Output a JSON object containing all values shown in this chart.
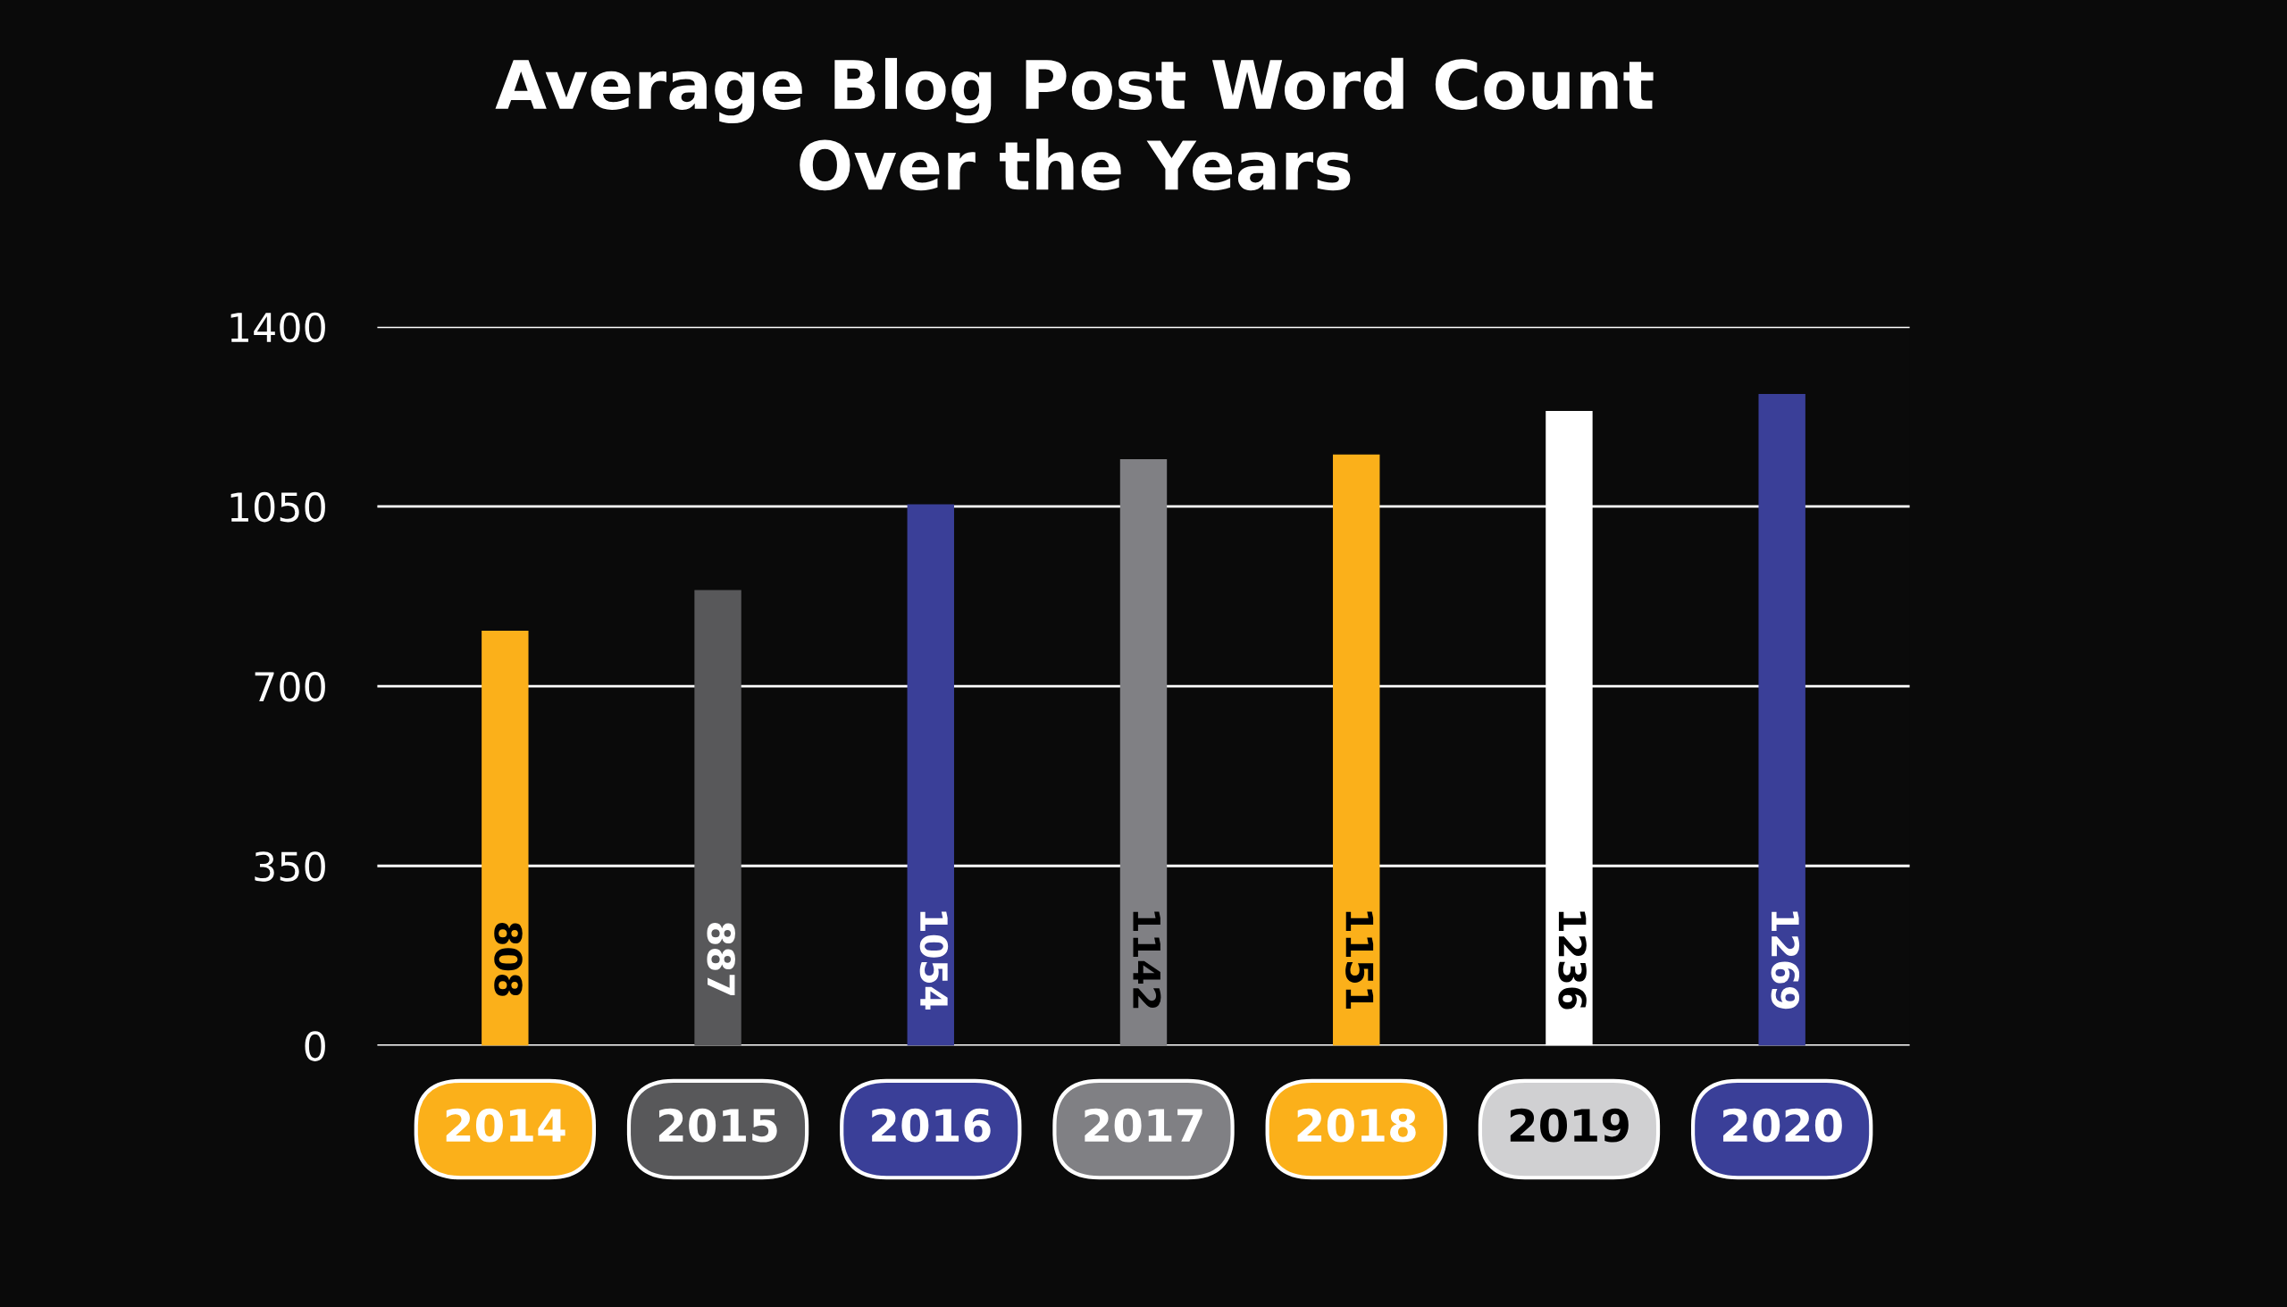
{
  "chart_data": {
    "type": "bar",
    "title": "Average Blog Post Word Count\nOver the Years",
    "categories": [
      "2014",
      "2015",
      "2016",
      "2017",
      "2018",
      "2019",
      "2020"
    ],
    "values": [
      808,
      887,
      1054,
      1142,
      1151,
      1236,
      1269
    ],
    "colors": [
      "#fbb01a",
      "#58585a",
      "#3a3f98",
      "#808084",
      "#fbb01a",
      "#ffffff",
      "#3a3f98"
    ],
    "ylim": [
      0,
      1400
    ],
    "yticks": [
      0,
      350,
      700,
      1050,
      1400
    ],
    "grid": "y",
    "data_labels": true
  }
}
